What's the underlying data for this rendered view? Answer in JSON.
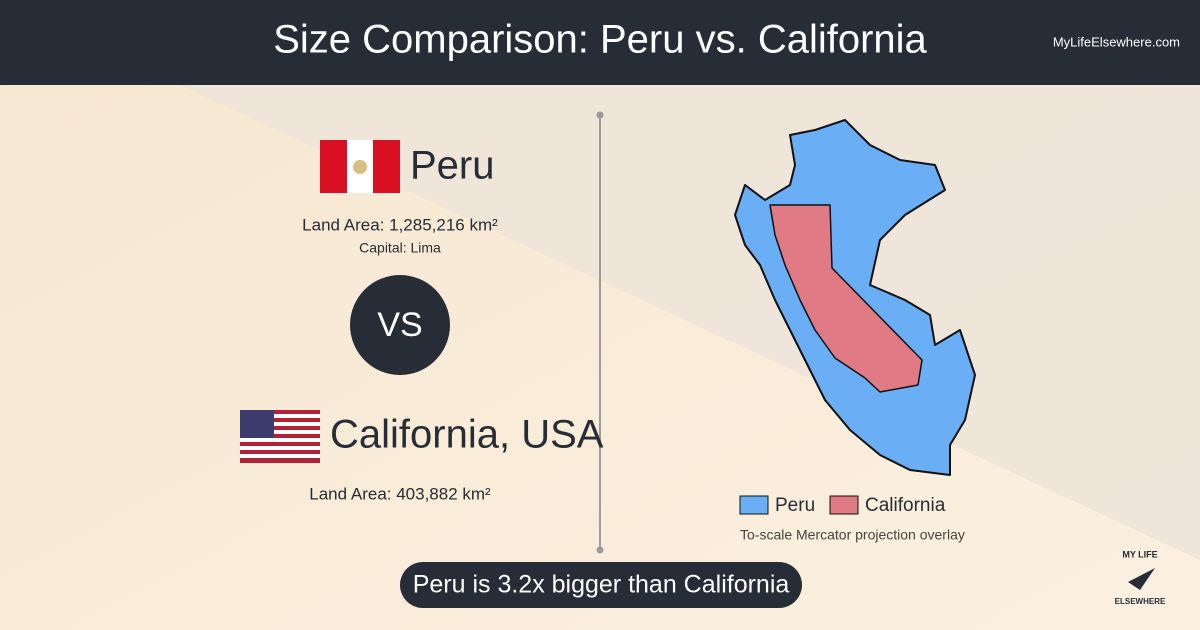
{
  "header": {
    "title": "Size Comparison: Peru vs. California",
    "site": "MyLifeElsewhere.com"
  },
  "country_a": {
    "name": "Peru",
    "land_area": "Land Area: 1,285,216 km²",
    "capital": "Capital: Lima"
  },
  "versus": "VS",
  "country_b": {
    "name": "California, USA",
    "land_area": "Land Area: 403,882 km²"
  },
  "legend": {
    "items": [
      "Peru",
      "California"
    ],
    "note": "To-scale Mercator projection overlay"
  },
  "summary": "Peru is 3.2x bigger than California",
  "logo": {
    "top": "MY LIFE",
    "bottom": "ELSEWHERE"
  }
}
